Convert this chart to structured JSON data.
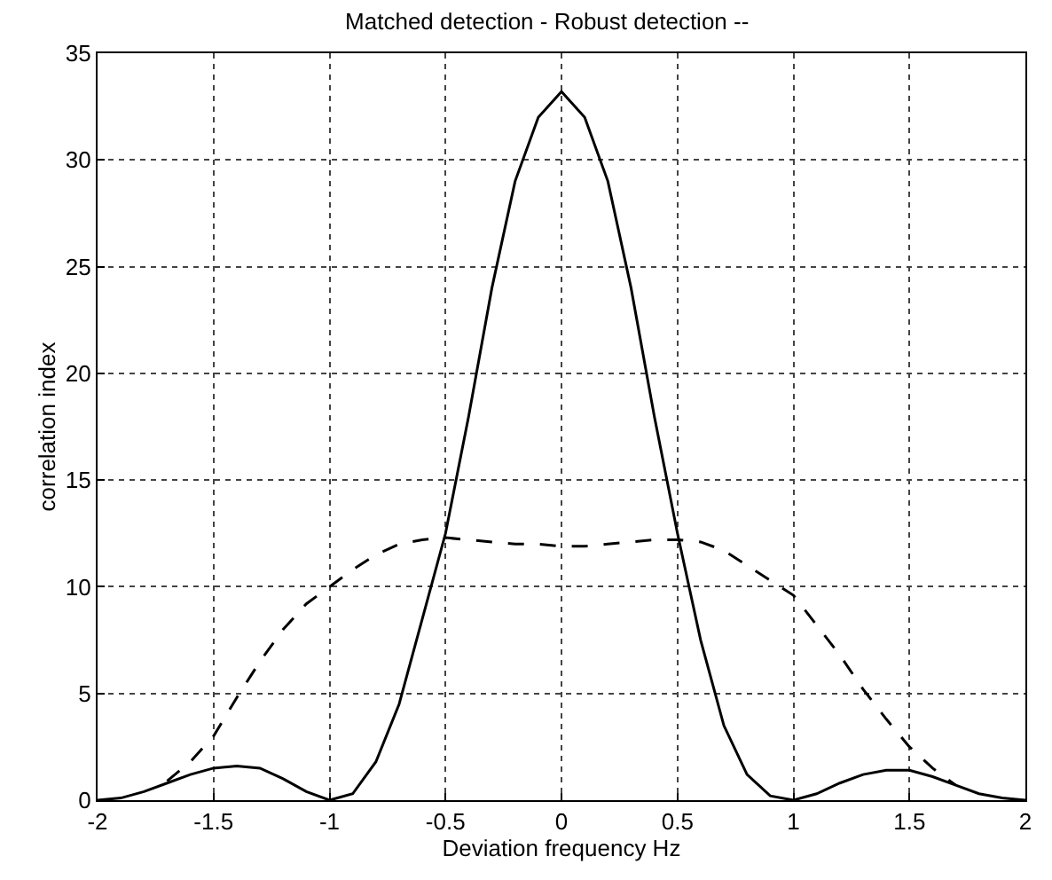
{
  "chart_data": {
    "type": "line",
    "title": "Matched detection - Robust detection --",
    "xlabel": "Deviation frequency Hz",
    "ylabel": "correlation index",
    "series": [
      {
        "color": "#000000",
        "line_style": "solid",
        "x": [
          -2,
          -1.9,
          -1.8,
          -1.7,
          -1.6,
          -1.5,
          -1.4,
          -1.3,
          -1.2,
          -1.1,
          -1,
          -0.9,
          -0.8,
          -0.7,
          -0.6,
          -0.5,
          -0.4,
          -0.3,
          -0.2,
          -0.1,
          0,
          0.1,
          0.2,
          0.3,
          0.4,
          0.5,
          0.6,
          0.7,
          0.8,
          0.9,
          1,
          1.1,
          1.2,
          1.3,
          1.4,
          1.5,
          1.6,
          1.7,
          1.8,
          1.9,
          2
        ],
        "values": [
          0,
          0.1,
          0.4,
          0.8,
          1.2,
          1.5,
          1.6,
          1.5,
          1.0,
          0.4,
          0,
          0.3,
          1.8,
          4.5,
          8.5,
          12.5,
          18,
          24,
          29,
          32,
          33.2,
          32,
          29,
          24,
          18,
          12.5,
          7.5,
          3.5,
          1.2,
          0.2,
          0,
          0.3,
          0.8,
          1.2,
          1.4,
          1.4,
          1.1,
          0.7,
          0.3,
          0.1,
          0
        ]
      },
      {
        "color": "#000000",
        "line_style": "dashed",
        "x": [
          -1.7,
          -1.6,
          -1.5,
          -1.4,
          -1.3,
          -1.2,
          -1.1,
          -1,
          -0.9,
          -0.8,
          -0.7,
          -0.6,
          -0.5,
          -0.4,
          -0.3,
          -0.2,
          -0.1,
          0,
          0.1,
          0.2,
          0.3,
          0.4,
          0.5,
          0.6,
          0.7,
          0.8,
          0.9,
          1,
          1.1,
          1.2,
          1.3,
          1.4,
          1.5,
          1.6,
          1.7
        ],
        "values": [
          0.9,
          1.8,
          3,
          4.8,
          6.5,
          8,
          9.2,
          10,
          10.8,
          11.5,
          12,
          12.2,
          12.3,
          12.2,
          12.1,
          12,
          12,
          11.9,
          11.9,
          12,
          12.1,
          12.2,
          12.2,
          12.1,
          11.7,
          11,
          10.3,
          9.6,
          8.2,
          6.8,
          5.2,
          3.8,
          2.5,
          1.5,
          0.7
        ]
      }
    ],
    "xlim": [
      -2,
      2
    ],
    "xticks": [
      -2,
      -1.5,
      -1,
      -0.5,
      0,
      0.5,
      1,
      1.5,
      2
    ],
    "ylim": [
      0,
      35
    ],
    "yticks": [
      0,
      5,
      10,
      15,
      20,
      25,
      30,
      35
    ],
    "grid": true,
    "marker": "none"
  }
}
